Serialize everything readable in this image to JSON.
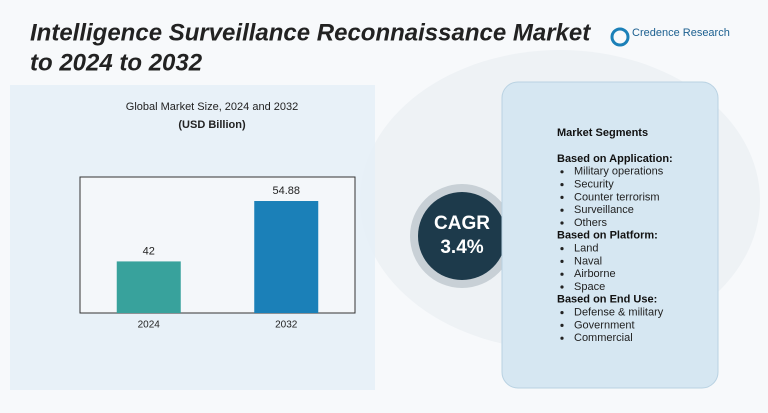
{
  "title_lines": [
    "Intelligence Surveillance Reconnaissance Market",
    "to 2024 to 2032"
  ],
  "logo": {
    "name": "Credence Research"
  },
  "chart_data": {
    "type": "bar",
    "title": "Global Market Size,  2024 and 2032",
    "subtitle": "(USD Billion)",
    "categories": [
      "2024",
      "2032"
    ],
    "values": [
      42,
      54.88
    ],
    "colors": [
      "#38a29c",
      "#1b80b8"
    ],
    "ylim": [
      31,
      60
    ]
  },
  "cagr": {
    "label": "CAGR",
    "value": "3.4%"
  },
  "segments": {
    "heading": "Market Segments",
    "groups": [
      {
        "title": "Based on Application:",
        "items": [
          "Military operations",
          "Security",
          "Counter terrorism",
          "Surveillance",
          "Others"
        ]
      },
      {
        "title": "Based on Platform:",
        "items": [
          "Land",
          "Naval",
          "Airborne",
          "Space"
        ]
      },
      {
        "title": "Based on End Use:",
        "items": [
          "Defense & military",
          "Government",
          "Commercial"
        ]
      }
    ]
  }
}
